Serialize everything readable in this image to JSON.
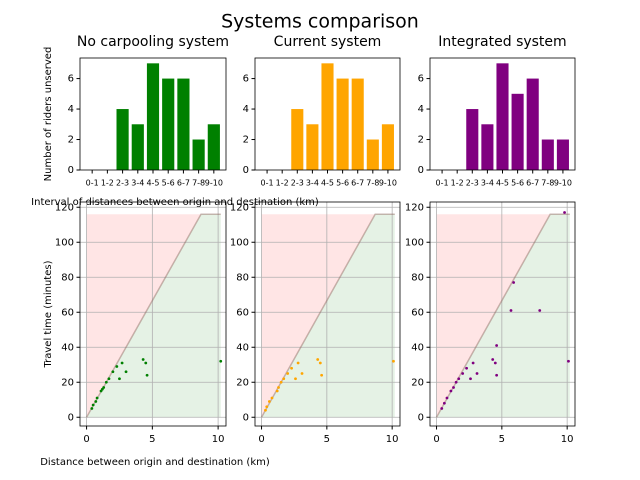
{
  "title": "Systems comparison",
  "chart_data": [
    {
      "type": "bar",
      "title": "No carpooling system",
      "y_label": "Number of riders unserved",
      "x_label": "Interval of distances between origin and destination (km)",
      "color": "#008000",
      "categories": [
        "0-1",
        "1-2",
        "2-3",
        "3-4",
        "4-5",
        "5-6",
        "6-7",
        "7-8",
        "9-10"
      ],
      "values": [
        0,
        0,
        4,
        3,
        7,
        6,
        6,
        2,
        3
      ],
      "ylim": [
        0,
        7.35
      ],
      "yticks": [
        0,
        2,
        4,
        6
      ]
    },
    {
      "type": "bar",
      "title": "Current system",
      "color": "#ffa500",
      "categories": [
        "0-1",
        "1-2",
        "2-3",
        "3-4",
        "4-5",
        "5-6",
        "6-7",
        "7-8",
        "9-10"
      ],
      "values": [
        0,
        0,
        4,
        3,
        7,
        6,
        6,
        2,
        3
      ],
      "ylim": [
        0,
        7.35
      ],
      "yticks": [
        0,
        2,
        4,
        6
      ]
    },
    {
      "type": "bar",
      "title": "Integrated system",
      "color": "#800080",
      "categories": [
        "0-1",
        "1-2",
        "2-3",
        "3-4",
        "4-5",
        "5-6",
        "6-7",
        "7-8",
        "9-10"
      ],
      "values": [
        0,
        0,
        4,
        3,
        7,
        5,
        6,
        2,
        2
      ],
      "ylim": [
        0,
        7.35
      ],
      "yticks": [
        0,
        2,
        4,
        6
      ]
    },
    {
      "type": "scatter",
      "y_label": "Travel time (minutes)",
      "x_label": "Distance between origin and destination (km)",
      "color": "#008000",
      "grid": true,
      "boundary": {
        "x": [
          0,
          8.7,
          10.2
        ],
        "y": [
          0,
          116,
          116
        ]
      },
      "x": [
        0.4,
        0.5,
        0.7,
        0.8,
        1.1,
        1.2,
        1.3,
        1.5,
        1.7,
        2.0,
        2.3,
        2.5,
        2.7,
        3.0,
        4.3,
        4.5,
        4.6,
        10.2
      ],
      "values": [
        5,
        7,
        9,
        11,
        15,
        16,
        17,
        20,
        22,
        26,
        29,
        22,
        31,
        26,
        33,
        31,
        24,
        32
      ],
      "xlim": [
        -0.5,
        10.6
      ],
      "ylim": [
        -5,
        123
      ],
      "xticks": [
        0,
        5,
        10
      ],
      "yticks": [
        0,
        20,
        40,
        60,
        80,
        100,
        120
      ]
    },
    {
      "type": "scatter",
      "color": "#ffa500",
      "grid": true,
      "boundary": {
        "x": [
          0,
          8.7,
          10.2
        ],
        "y": [
          0,
          116,
          116
        ]
      },
      "x": [
        0.3,
        0.4,
        0.6,
        0.8,
        1.2,
        1.3,
        1.5,
        1.7,
        2.0,
        2.3,
        2.6,
        2.8,
        3.1,
        4.3,
        4.5,
        4.6,
        10.1
      ],
      "values": [
        4,
        6,
        9,
        11,
        15,
        17,
        20,
        22,
        25,
        28,
        22,
        31,
        25,
        33,
        31,
        24,
        32
      ],
      "xlim": [
        -0.5,
        10.6
      ],
      "ylim": [
        -5,
        123
      ],
      "xticks": [
        0,
        5,
        10
      ],
      "yticks": [
        0,
        20,
        40,
        60,
        80,
        100,
        120
      ]
    },
    {
      "type": "scatter",
      "color": "#800080",
      "grid": true,
      "boundary": {
        "x": [
          0,
          8.7,
          10.2
        ],
        "y": [
          0,
          116,
          116
        ]
      },
      "x": [
        0.4,
        0.6,
        0.8,
        1.1,
        1.3,
        1.5,
        1.7,
        2.0,
        2.3,
        2.6,
        2.8,
        3.1,
        4.3,
        4.5,
        4.6,
        4.6,
        5.7,
        5.9,
        7.9,
        9.8,
        10.1
      ],
      "values": [
        5,
        8,
        11,
        15,
        17,
        20,
        22,
        25,
        28,
        22,
        31,
        25,
        33,
        31,
        24,
        41,
        61,
        77,
        61,
        117,
        32
      ],
      "xlim": [
        -0.5,
        10.6
      ],
      "ylim": [
        -5,
        123
      ],
      "xticks": [
        0,
        5,
        10
      ],
      "yticks": [
        0,
        20,
        40,
        60,
        80,
        100,
        120
      ]
    }
  ]
}
